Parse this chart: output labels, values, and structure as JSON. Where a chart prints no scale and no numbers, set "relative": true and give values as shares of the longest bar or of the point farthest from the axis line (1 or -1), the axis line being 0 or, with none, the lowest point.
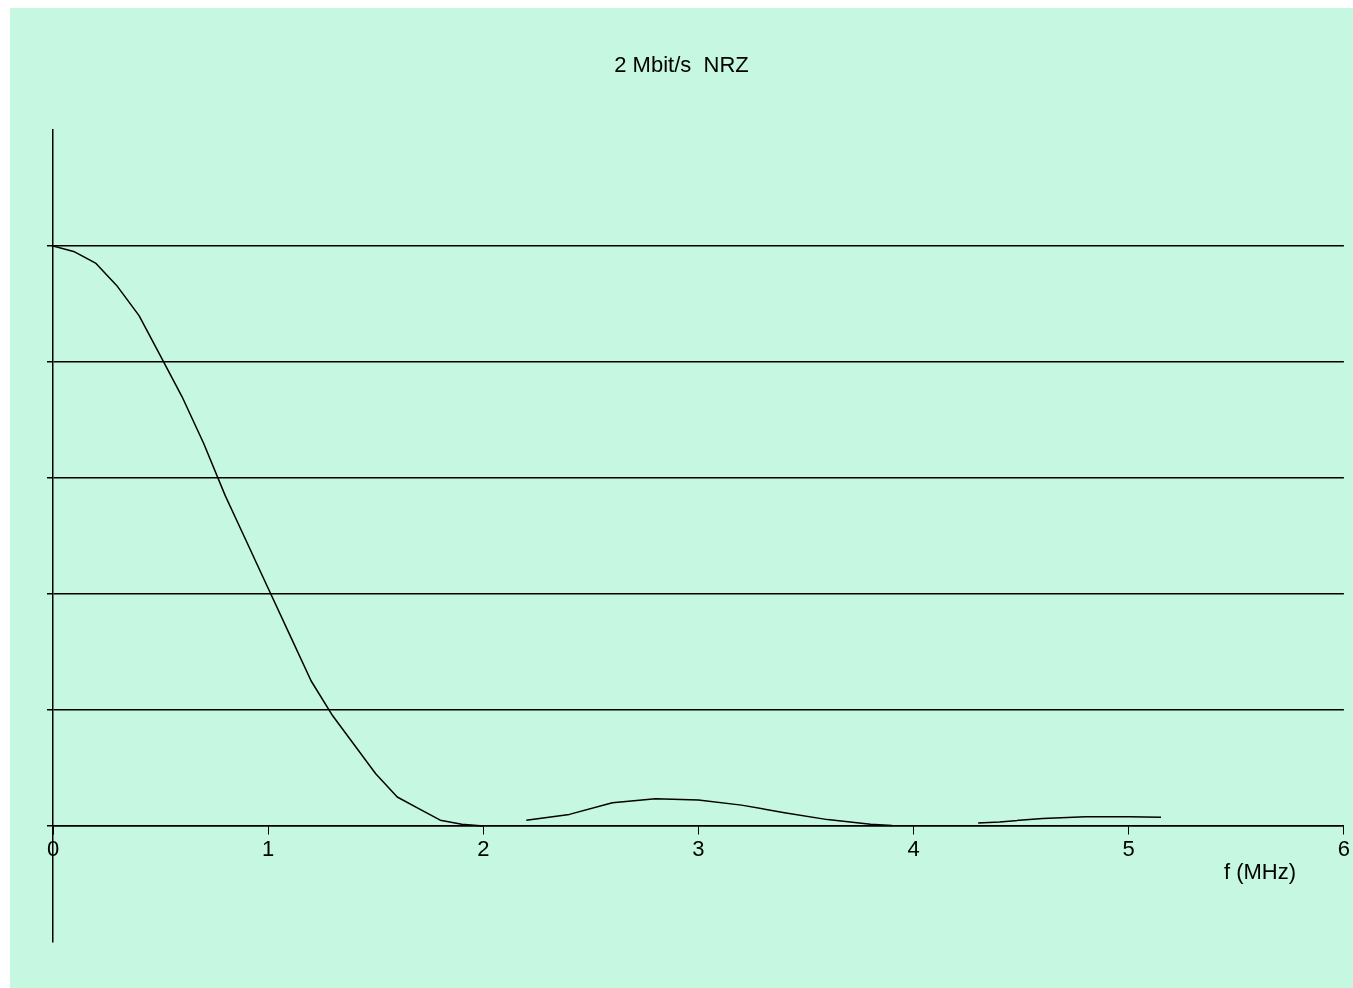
{
  "chart_data": {
    "type": "line",
    "title": "2 Mbit/s  NRZ",
    "xlabel": "f (MHz)",
    "relative": true,
    "xlim": [
      0,
      6
    ],
    "xticks": [
      0,
      1,
      2,
      3,
      4,
      5,
      6
    ],
    "grid": "y",
    "legend": false,
    "marker": "none",
    "line_style": "solid",
    "series": [
      {
        "color": "#000000",
        "x": [
          0,
          0.1,
          0.2,
          0.3,
          0.4,
          0.5,
          0.6,
          0.7,
          0.8,
          0.9,
          1.0,
          1.1,
          1.2,
          1.3,
          1.4,
          1.5,
          1.6,
          1.7,
          1.8,
          1.9,
          2.0,
          2.1,
          2.2,
          2.4,
          2.6,
          2.8,
          3.0,
          3.2,
          3.4,
          3.6,
          3.8,
          3.9,
          4.1,
          4.3,
          4.4,
          4.6,
          4.8,
          5.0,
          5.15
        ],
        "values": [
          1,
          0.99,
          0.97,
          0.93,
          0.88,
          0.81,
          0.74,
          0.66,
          0.57,
          0.49,
          0.41,
          0.33,
          0.25,
          0.19,
          0.14,
          0.09,
          0.05,
          0.03,
          0.01,
          0.003,
          0,
          null,
          0.01,
          0.02,
          0.04,
          0.047,
          0.045,
          0.036,
          0.023,
          0.011,
          0.003,
          0.001,
          null,
          0.005,
          0.007,
          0.013,
          0.016,
          0.016,
          0.015
        ]
      }
    ]
  }
}
